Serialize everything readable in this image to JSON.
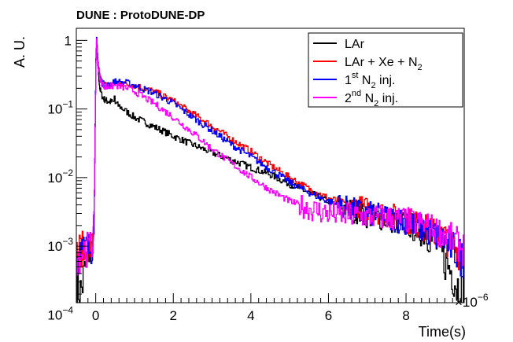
{
  "chart_data": {
    "type": "line",
    "title": "DUNE : ProtoDUNE-DP",
    "xlabel": "Time(s)",
    "ylabel": "A. U.",
    "x_multiplier_label": "×10",
    "x_multiplier_exp": "−6",
    "x_scale": 1e-06,
    "xlim": [
      -0.5,
      9.5
    ],
    "ylim": [
      0.00015,
      1.5
    ],
    "y_scale": "log",
    "grid": false,
    "legend_position": "top-right",
    "x_ticks": [
      {
        "value": 0,
        "label": "0"
      },
      {
        "value": 2,
        "label": "2"
      },
      {
        "value": 4,
        "label": "4"
      },
      {
        "value": 6,
        "label": "6"
      },
      {
        "value": 8,
        "label": "8"
      }
    ],
    "y_ticks": [
      {
        "value": 1,
        "base": "1",
        "exp": ""
      },
      {
        "value": 0.1,
        "base": "10",
        "exp": "−1"
      },
      {
        "value": 0.01,
        "base": "10",
        "exp": "−2"
      },
      {
        "value": 0.001,
        "base": "10",
        "exp": "−3"
      },
      {
        "value": 0.0001,
        "base": "10",
        "exp": "−4"
      }
    ],
    "legend": [
      {
        "text": "LAr",
        "color": "#000000"
      },
      {
        "text": "LAr + Xe + N",
        "sub": "2",
        "color": "#ff0000"
      },
      {
        "text": "1",
        "sup": "st",
        "mid": " N",
        "sub": "2",
        "tail": " inj.",
        "color": "#0000ff"
      },
      {
        "text": "2",
        "sup": "nd",
        "mid": " N",
        "sub": "2",
        "tail": " inj.",
        "color": "#ff00ff"
      }
    ],
    "series": [
      {
        "name": "LAr",
        "color": "#000000",
        "x": [
          -0.5,
          -0.4,
          -0.3,
          -0.2,
          -0.1,
          -0.05,
          0.0,
          0.02,
          0.05,
          0.1,
          0.15,
          0.2,
          0.3,
          0.45,
          0.48,
          0.5,
          0.6,
          0.8,
          1.0,
          1.5,
          2.0,
          2.5,
          3.0,
          3.5,
          4.0,
          4.5,
          5.0,
          5.5,
          6.0,
          6.5,
          7.0,
          7.5,
          8.0,
          8.5,
          8.8,
          9.0,
          9.2,
          9.4,
          9.5
        ],
        "y": [
          0.0003,
          0.0002,
          0.0004,
          0.0008,
          0.0009,
          0.002,
          0.5,
          1.0,
          0.45,
          0.2,
          0.16,
          0.14,
          0.13,
          0.125,
          0.16,
          0.12,
          0.11,
          0.09,
          0.075,
          0.055,
          0.04,
          0.03,
          0.023,
          0.018,
          0.014,
          0.011,
          0.008,
          0.006,
          0.0045,
          0.0035,
          0.0028,
          0.0025,
          0.0021,
          0.0015,
          0.001,
          0.0006,
          0.0004,
          0.0002,
          0.00015
        ]
      },
      {
        "name": "LAr + Xe + N2",
        "color": "#ff0000",
        "x": [
          -0.5,
          -0.4,
          -0.3,
          -0.2,
          -0.1,
          -0.05,
          0.0,
          0.02,
          0.05,
          0.1,
          0.15,
          0.2,
          0.3,
          0.5,
          0.8,
          1.0,
          1.5,
          2.0,
          2.5,
          3.0,
          3.5,
          4.0,
          4.5,
          5.0,
          5.5,
          6.0,
          6.5,
          7.0,
          7.5,
          8.0,
          8.5,
          9.0,
          9.3,
          9.5
        ],
        "y": [
          0.0008,
          0.0009,
          0.0009,
          0.0009,
          0.001,
          0.002,
          0.5,
          1.0,
          0.5,
          0.3,
          0.25,
          0.23,
          0.22,
          0.24,
          0.23,
          0.22,
          0.18,
          0.13,
          0.085,
          0.056,
          0.036,
          0.024,
          0.015,
          0.01,
          0.0068,
          0.005,
          0.0041,
          0.0035,
          0.0029,
          0.0024,
          0.0018,
          0.0013,
          0.0009,
          0.0007
        ]
      },
      {
        "name": "1st N2 inj.",
        "color": "#0000ff",
        "x": [
          -0.5,
          -0.4,
          -0.3,
          -0.2,
          -0.1,
          -0.05,
          0.0,
          0.02,
          0.05,
          0.1,
          0.15,
          0.2,
          0.3,
          0.5,
          0.8,
          1.0,
          1.5,
          2.0,
          2.5,
          3.0,
          3.5,
          4.0,
          4.5,
          5.0,
          5.5,
          6.0,
          6.5,
          7.0,
          7.5,
          8.0,
          8.5,
          9.0,
          9.3,
          9.5
        ],
        "y": [
          0.0006,
          0.0008,
          0.0009,
          0.0009,
          0.001,
          0.002,
          0.5,
          1.0,
          0.5,
          0.3,
          0.25,
          0.23,
          0.22,
          0.25,
          0.24,
          0.22,
          0.17,
          0.12,
          0.075,
          0.048,
          0.03,
          0.02,
          0.013,
          0.0085,
          0.006,
          0.0045,
          0.0036,
          0.003,
          0.0026,
          0.0023,
          0.0017,
          0.0012,
          0.0008,
          0.0006
        ]
      },
      {
        "name": "2nd N2 inj.",
        "color": "#ff00ff",
        "x": [
          -0.5,
          -0.4,
          -0.3,
          -0.2,
          -0.1,
          -0.05,
          0.0,
          0.02,
          0.05,
          0.1,
          0.15,
          0.2,
          0.3,
          0.5,
          0.8,
          1.0,
          1.5,
          2.0,
          2.5,
          3.0,
          3.5,
          4.0,
          4.5,
          5.0,
          5.5,
          6.0,
          6.5,
          7.0,
          7.5,
          8.0,
          8.5,
          9.0,
          9.3,
          9.5
        ],
        "y": [
          0.0007,
          0.0008,
          0.0009,
          0.0009,
          0.001,
          0.002,
          0.5,
          1.0,
          0.45,
          0.28,
          0.24,
          0.22,
          0.21,
          0.22,
          0.2,
          0.18,
          0.12,
          0.075,
          0.045,
          0.026,
          0.016,
          0.01,
          0.0065,
          0.0045,
          0.0035,
          0.003,
          0.0028,
          0.0027,
          0.0026,
          0.0024,
          0.002,
          0.0015,
          0.0011,
          0.0009
        ]
      }
    ]
  }
}
